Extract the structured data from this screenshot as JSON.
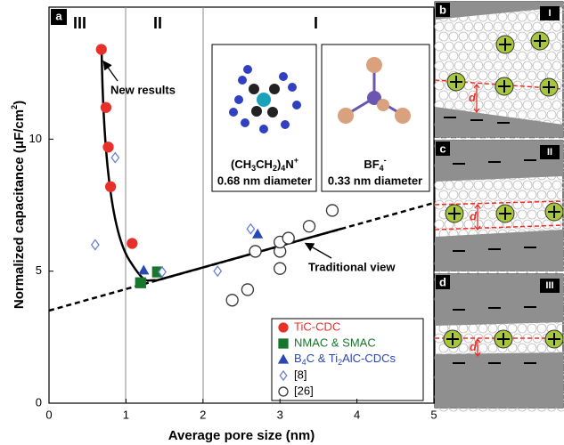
{
  "chart_data": {
    "type": "scatter",
    "panel_label": "a",
    "x_label": "Average pore size (nm)",
    "y_label": [
      "Normalized capacitance (μF/cm",
      {
        "sup": "2"
      },
      ")"
    ],
    "xlim": [
      0,
      5
    ],
    "ylim": [
      0,
      15
    ],
    "xticks": [
      0,
      1,
      2,
      3,
      4,
      5
    ],
    "yticks": [
      0,
      5,
      10
    ],
    "regions": [
      "III",
      "II",
      "I"
    ],
    "annotations": [
      "New results",
      "Traditional view"
    ],
    "series": [
      {
        "name": "TiC-CDC",
        "color": "#e8302a",
        "marker": "circle",
        "filled": true,
        "x": [
          0.68,
          0.74,
          0.77,
          0.8,
          1.08
        ],
        "values": [
          13.4,
          11.2,
          9.7,
          8.2,
          6.05
        ]
      },
      {
        "name": "NMAC & SMAC",
        "color": "#17772c",
        "marker": "square",
        "filled": true,
        "x": [
          1.19,
          1.41
        ],
        "values": [
          4.56,
          4.97
        ]
      },
      {
        "name": [
          "B",
          {
            "sub": "4"
          },
          "C & Ti",
          {
            "sub": "2"
          },
          "AlC-CDCs"
        ],
        "color": "#2a47b3",
        "marker": "triangle",
        "filled": true,
        "x": [
          1.23,
          2.71
        ],
        "values": [
          5.03,
          6.4
        ]
      },
      {
        "name": "[8]",
        "color": "#6a82d4",
        "marker": "diamond",
        "filled": false,
        "x": [
          0.86,
          0.6,
          1.47,
          2.19,
          2.62
        ],
        "values": [
          9.3,
          6.0,
          4.97,
          5.0,
          6.6
        ]
      },
      {
        "name": "[26]",
        "color": "#333333",
        "marker": "circle",
        "filled": false,
        "x": [
          2.38,
          2.58,
          3.0,
          3.0,
          3.0,
          3.11,
          3.38,
          3.68,
          2.68
        ],
        "values": [
          3.9,
          4.3,
          5.75,
          5.1,
          6.1,
          6.25,
          6.7,
          7.3,
          5.75
        ]
      }
    ]
  },
  "insets": [
    {
      "formula": [
        "(CH",
        {
          "sub": "3"
        },
        "CH",
        {
          "sub": "2"
        },
        ")",
        {
          "sub": "4"
        },
        "N",
        {
          "sup": "+"
        }
      ],
      "size": "0.68 nm diameter"
    },
    {
      "formula": [
        "BF",
        {
          "sub": "4"
        },
        {
          "sup": "-"
        }
      ],
      "size": "0.33 nm diameter"
    }
  ],
  "schematics": [
    {
      "label": "b",
      "regime": "I",
      "gap_label": "d"
    },
    {
      "label": "c",
      "regime": "II",
      "gap_label": "d"
    },
    {
      "label": "d",
      "regime": "III",
      "gap_label": "d"
    }
  ]
}
